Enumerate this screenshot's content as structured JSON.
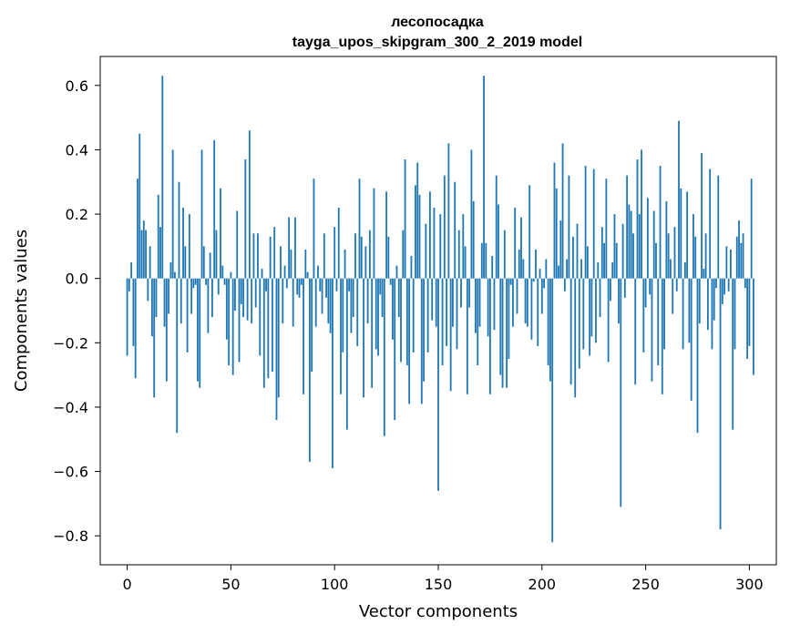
{
  "chart_data": {
    "type": "bar",
    "title": "лесопосадка",
    "subtitle": "tayga_upos_skipgram_300_2_2019 model",
    "xlabel": "Vector components",
    "ylabel": "Components values",
    "xlim": [
      -13,
      313
    ],
    "ylim": [
      -0.89,
      0.69
    ],
    "xticks": [
      0,
      50,
      100,
      150,
      200,
      250,
      300
    ],
    "yticks": [
      0.6,
      0.4,
      0.2,
      0.0,
      -0.2,
      -0.4,
      -0.6,
      -0.8
    ],
    "ytick_labels": [
      "0.6",
      "0.4",
      "0.2",
      "0.0",
      "−0.2",
      "−0.4",
      "−0.6",
      "−0.8"
    ],
    "grid": false,
    "bar_color": "#1f77b4",
    "x_start": 0,
    "values": [
      -0.24,
      -0.04,
      0.05,
      -0.21,
      -0.31,
      0.31,
      0.45,
      0.15,
      0.18,
      0.15,
      -0.07,
      0.1,
      -0.18,
      -0.37,
      -0.12,
      0.26,
      0.16,
      0.63,
      -0.15,
      -0.32,
      -0.11,
      0.05,
      0.4,
      0.02,
      -0.48,
      0.3,
      -0.14,
      0.22,
      0.1,
      -0.23,
      0.2,
      -0.11,
      -0.03,
      -0.02,
      -0.32,
      -0.34,
      0.4,
      0.1,
      -0.02,
      -0.17,
      0.08,
      -0.12,
      0.43,
      0.15,
      -0.05,
      0.28,
      0.04,
      -0.02,
      -0.19,
      -0.27,
      0.02,
      -0.3,
      -0.1,
      0.21,
      -0.26,
      -0.08,
      -0.12,
      0.37,
      -0.13,
      0.46,
      -0.14,
      0.14,
      -0.09,
      0.14,
      -0.24,
      0.03,
      -0.34,
      -0.04,
      -0.31,
      0.13,
      -0.29,
      0.16,
      -0.44,
      -0.37,
      0.1,
      -0.14,
      0.04,
      -0.03,
      0.19,
      0.09,
      -0.15,
      0.19,
      -0.05,
      -0.06,
      -0.02,
      -0.36,
      0.09,
      0.02,
      -0.57,
      -0.29,
      0.31,
      -0.15,
      0.04,
      -0.04,
      -0.11,
      0.14,
      -0.06,
      -0.14,
      -0.17,
      -0.59,
      0.16,
      -0.04,
      0.22,
      -0.36,
      -0.23,
      0.09,
      -0.47,
      -0.04,
      -0.17,
      -0.12,
      0.14,
      -0.21,
      0.31,
      0.13,
      -0.37,
      0.1,
      -0.14,
      0.15,
      -0.34,
      0.28,
      -0.22,
      -0.24,
      -0.05,
      -0.12,
      -0.49,
      0.27,
      0.13,
      -0.02,
      -0.19,
      -0.44,
      0.04,
      -0.12,
      -0.26,
      0.15,
      0.37,
      -0.27,
      -0.39,
      0.07,
      -0.23,
      0.29,
      0.36,
      0.26,
      -0.39,
      -0.32,
      0.17,
      -0.23,
      0.27,
      -0.13,
      0.22,
      -0.15,
      -0.66,
      0.2,
      -0.27,
      0.32,
      -0.21,
      0.42,
      -0.35,
      -0.15,
      0.3,
      -0.22,
      0.15,
      -0.09,
      0.2,
      0.1,
      -0.36,
      -0.09,
      0.4,
      0.24,
      -0.17,
      -0.27,
      -0.15,
      0.11,
      0.63,
      0.11,
      -0.18,
      -0.36,
      0.07,
      -0.16,
      0.32,
      0.23,
      -0.3,
      -0.34,
      0.15,
      -0.34,
      -0.25,
      -0.02,
      -0.15,
      0.22,
      -0.11,
      0.09,
      0.19,
      0.06,
      -0.14,
      -0.15,
      0.29,
      -0.19,
      -0.01,
      0.09,
      -0.21,
      0.03,
      -0.11,
      -0.03,
      0.06,
      -0.27,
      -0.32,
      -0.82,
      0.36,
      0.28,
      0.04,
      0.18,
      0.42,
      -0.04,
      0.06,
      0.32,
      -0.33,
      0.13,
      -0.37,
      0.17,
      -0.28,
      0.06,
      -0.22,
      0.35,
      0.1,
      -0.24,
      -0.18,
      0.34,
      -0.2,
      0.05,
      -0.12,
      0.16,
      0.11,
      0.31,
      -0.26,
      -0.07,
      0.05,
      0.2,
      0.11,
      -0.14,
      -0.71,
      0.17,
      -0.06,
      0.32,
      0.23,
      0.21,
      0.14,
      -0.33,
      0.37,
      0.2,
      0.4,
      -0.23,
      -0.09,
      0.25,
      -0.05,
      -0.32,
      0.21,
      0.11,
      -0.27,
      0.35,
      -0.36,
      -0.22,
      0.24,
      0.14,
      0.06,
      -0.11,
      0.16,
      -0.04,
      0.49,
      0.28,
      -0.22,
      0.05,
      0.27,
      -0.2,
      -0.38,
      0.2,
      0.13,
      -0.48,
      -0.14,
      0.39,
      0.03,
      0.14,
      -0.16,
      0.34,
      -0.22,
      -0.13,
      -0.03,
      0.32,
      -0.78,
      -0.08,
      -0.05,
      0.1,
      -0.04,
      0.09,
      -0.47,
      -0.22,
      0.13,
      0.18,
      0.11,
      0.14,
      -0.03,
      -0.25,
      -0.21,
      0.31,
      -0.3
    ]
  }
}
